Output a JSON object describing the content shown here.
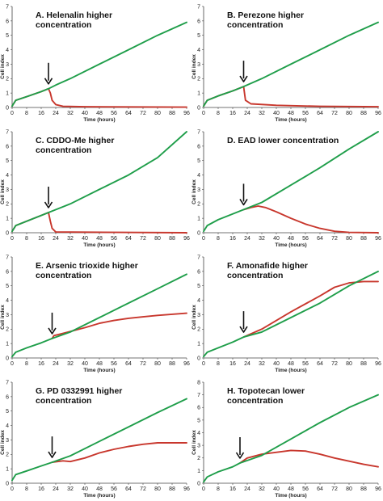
{
  "colors": {
    "control": "#1f9e4a",
    "treated": "#c8372d",
    "axis": "#444444",
    "arrow": "#111111"
  },
  "chart_data": [
    {
      "type": "line",
      "title": "A. Helenalin higher concentration",
      "xlabel": "Time (hours)",
      "ylabel": "Cell index",
      "xlim": [
        0,
        96
      ],
      "ylim": [
        0,
        7
      ],
      "x_ticks": [
        0,
        8,
        16,
        24,
        32,
        40,
        48,
        56,
        64,
        72,
        80,
        88,
        96
      ],
      "y_ticks": [
        0,
        1,
        2,
        3,
        4,
        5,
        6,
        7
      ],
      "arrow_x": 20,
      "series": [
        {
          "color": "green",
          "points": [
            [
              0,
              0.1
            ],
            [
              2,
              0.5
            ],
            [
              8,
              0.75
            ],
            [
              16,
              1.1
            ],
            [
              20,
              1.3
            ],
            [
              24,
              1.55
            ],
            [
              32,
              2.0
            ],
            [
              48,
              3.0
            ],
            [
              64,
              4.0
            ],
            [
              80,
              5.0
            ],
            [
              96,
              5.9
            ]
          ]
        },
        {
          "color": "red",
          "points": [
            [
              0,
              0.1
            ],
            [
              2,
              0.5
            ],
            [
              8,
              0.75
            ],
            [
              16,
              1.1
            ],
            [
              20,
              1.3
            ],
            [
              21,
              1.0
            ],
            [
              22,
              0.5
            ],
            [
              24,
              0.2
            ],
            [
              28,
              0.08
            ],
            [
              40,
              0.05
            ],
            [
              96,
              0.02
            ]
          ]
        }
      ]
    },
    {
      "type": "line",
      "title": "B. Perezone higher concentration",
      "xlabel": "Time (hours)",
      "ylabel": "Cell index",
      "xlim": [
        0,
        96
      ],
      "ylim": [
        0,
        7
      ],
      "x_ticks": [
        0,
        8,
        16,
        24,
        32,
        40,
        48,
        56,
        64,
        72,
        80,
        88,
        96
      ],
      "y_ticks": [
        0,
        1,
        2,
        3,
        4,
        5,
        6,
        7
      ],
      "arrow_x": 22,
      "series": [
        {
          "color": "green",
          "points": [
            [
              0,
              0.1
            ],
            [
              2,
              0.5
            ],
            [
              8,
              0.8
            ],
            [
              16,
              1.15
            ],
            [
              22,
              1.45
            ],
            [
              32,
              2.0
            ],
            [
              48,
              3.0
            ],
            [
              64,
              4.0
            ],
            [
              80,
              5.0
            ],
            [
              96,
              5.9
            ]
          ]
        },
        {
          "color": "red",
          "points": [
            [
              0,
              0.1
            ],
            [
              2,
              0.5
            ],
            [
              8,
              0.8
            ],
            [
              16,
              1.15
            ],
            [
              22,
              1.45
            ],
            [
              23,
              0.5
            ],
            [
              26,
              0.25
            ],
            [
              40,
              0.15
            ],
            [
              64,
              0.08
            ],
            [
              96,
              0.05
            ]
          ]
        }
      ]
    },
    {
      "type": "line",
      "title": "C. CDDO-Me higher concentration",
      "xlabel": "Time (hours)",
      "ylabel": "Cell index",
      "xlim": [
        0,
        96
      ],
      "ylim": [
        0,
        7
      ],
      "x_ticks": [
        0,
        8,
        16,
        24,
        32,
        40,
        48,
        56,
        64,
        72,
        80,
        88,
        96
      ],
      "y_ticks": [
        0,
        1,
        2,
        3,
        4,
        5,
        6,
        7
      ],
      "arrow_x": 20,
      "series": [
        {
          "color": "green",
          "points": [
            [
              0,
              0.1
            ],
            [
              2,
              0.5
            ],
            [
              8,
              0.8
            ],
            [
              16,
              1.2
            ],
            [
              20,
              1.4
            ],
            [
              32,
              2.0
            ],
            [
              48,
              3.0
            ],
            [
              64,
              4.0
            ],
            [
              80,
              5.2
            ],
            [
              96,
              7.0
            ]
          ]
        },
        {
          "color": "red",
          "points": [
            [
              0,
              0.1
            ],
            [
              2,
              0.5
            ],
            [
              8,
              0.8
            ],
            [
              16,
              1.2
            ],
            [
              20,
              1.4
            ],
            [
              21,
              0.8
            ],
            [
              22,
              0.3
            ],
            [
              24,
              0.05
            ],
            [
              96,
              0.0
            ]
          ]
        }
      ]
    },
    {
      "type": "line",
      "title": "D. EAD lower concentration",
      "xlabel": "Time (hours)",
      "ylabel": "Cell index",
      "xlim": [
        0,
        96
      ],
      "ylim": [
        0,
        7
      ],
      "x_ticks": [
        0,
        8,
        16,
        24,
        32,
        40,
        48,
        56,
        64,
        72,
        80,
        88,
        96
      ],
      "y_ticks": [
        0,
        1,
        2,
        3,
        4,
        5,
        6,
        7
      ],
      "arrow_x": 22,
      "series": [
        {
          "color": "green",
          "points": [
            [
              0,
              0.1
            ],
            [
              2,
              0.5
            ],
            [
              8,
              0.9
            ],
            [
              16,
              1.3
            ],
            [
              22,
              1.6
            ],
            [
              32,
              2.1
            ],
            [
              48,
              3.3
            ],
            [
              64,
              4.5
            ],
            [
              80,
              5.8
            ],
            [
              96,
              7.0
            ]
          ]
        },
        {
          "color": "red",
          "points": [
            [
              22,
              1.6
            ],
            [
              26,
              1.75
            ],
            [
              30,
              1.85
            ],
            [
              34,
              1.75
            ],
            [
              40,
              1.45
            ],
            [
              48,
              1.0
            ],
            [
              56,
              0.6
            ],
            [
              64,
              0.3
            ],
            [
              72,
              0.1
            ],
            [
              80,
              0.02
            ],
            [
              96,
              0.0
            ]
          ]
        }
      ]
    },
    {
      "type": "line",
      "title": "E. Arsenic trioxide higher concentration",
      "xlabel": "Time (hours)",
      "ylabel": "Cell index",
      "xlim": [
        0,
        96
      ],
      "ylim": [
        0,
        7
      ],
      "x_ticks": [
        0,
        8,
        16,
        24,
        32,
        40,
        48,
        56,
        64,
        72,
        80,
        88,
        96
      ],
      "y_ticks": [
        0,
        1,
        2,
        3,
        4,
        5,
        6,
        7
      ],
      "arrow_x": 22,
      "series": [
        {
          "color": "green",
          "points": [
            [
              0,
              0.1
            ],
            [
              2,
              0.4
            ],
            [
              8,
              0.7
            ],
            [
              16,
              1.05
            ],
            [
              22,
              1.35
            ],
            [
              32,
              1.8
            ],
            [
              48,
              2.8
            ],
            [
              64,
              3.8
            ],
            [
              80,
              4.8
            ],
            [
              96,
              5.8
            ]
          ]
        },
        {
          "color": "red",
          "points": [
            [
              22,
              1.35
            ],
            [
              23,
              1.55
            ],
            [
              28,
              1.7
            ],
            [
              40,
              2.1
            ],
            [
              48,
              2.4
            ],
            [
              56,
              2.6
            ],
            [
              64,
              2.75
            ],
            [
              72,
              2.85
            ],
            [
              80,
              2.95
            ],
            [
              96,
              3.1
            ]
          ]
        }
      ]
    },
    {
      "type": "line",
      "title": "F. Amonafide higher concentration",
      "xlabel": "Time (hours)",
      "ylabel": "Cell index",
      "xlim": [
        0,
        96
      ],
      "ylim": [
        0,
        7
      ],
      "x_ticks": [
        0,
        8,
        16,
        24,
        32,
        40,
        48,
        56,
        64,
        72,
        80,
        88,
        96
      ],
      "y_ticks": [
        0,
        1,
        2,
        3,
        4,
        5,
        6,
        7
      ],
      "arrow_x": 22,
      "series": [
        {
          "color": "green",
          "points": [
            [
              0,
              0.1
            ],
            [
              2,
              0.4
            ],
            [
              8,
              0.7
            ],
            [
              16,
              1.1
            ],
            [
              22,
              1.45
            ],
            [
              32,
              1.8
            ],
            [
              48,
              2.8
            ],
            [
              64,
              3.8
            ],
            [
              80,
              5.0
            ],
            [
              96,
              6.0
            ]
          ]
        },
        {
          "color": "red",
          "points": [
            [
              22,
              1.45
            ],
            [
              32,
              2.0
            ],
            [
              48,
              3.2
            ],
            [
              64,
              4.3
            ],
            [
              72,
              4.9
            ],
            [
              80,
              5.2
            ],
            [
              88,
              5.3
            ],
            [
              96,
              5.3
            ]
          ]
        }
      ]
    },
    {
      "type": "line",
      "title": "G. PD 0332991 higher concentration",
      "xlabel": "Time (hours)",
      "ylabel": "Cell index",
      "xlim": [
        0,
        96
      ],
      "ylim": [
        0,
        7
      ],
      "x_ticks": [
        0,
        8,
        16,
        24,
        32,
        40,
        48,
        56,
        64,
        72,
        80,
        88,
        96
      ],
      "y_ticks": [
        0,
        1,
        2,
        3,
        4,
        5,
        6,
        7
      ],
      "arrow_x": 22,
      "series": [
        {
          "color": "green",
          "points": [
            [
              0,
              0.2
            ],
            [
              2,
              0.6
            ],
            [
              8,
              0.85
            ],
            [
              16,
              1.2
            ],
            [
              22,
              1.45
            ],
            [
              32,
              1.9
            ],
            [
              48,
              2.9
            ],
            [
              64,
              3.9
            ],
            [
              80,
              4.9
            ],
            [
              96,
              5.85
            ]
          ]
        },
        {
          "color": "red",
          "points": [
            [
              22,
              1.45
            ],
            [
              28,
              1.55
            ],
            [
              32,
              1.5
            ],
            [
              40,
              1.75
            ],
            [
              48,
              2.1
            ],
            [
              56,
              2.35
            ],
            [
              64,
              2.55
            ],
            [
              72,
              2.7
            ],
            [
              80,
              2.8
            ],
            [
              96,
              2.8
            ]
          ]
        }
      ]
    },
    {
      "type": "line",
      "title": "H. Topotecan lower concentration",
      "xlabel": "Time (hours)",
      "ylabel": "Cell index",
      "xlim": [
        0,
        96
      ],
      "ylim": [
        0,
        8
      ],
      "x_ticks": [
        0,
        8,
        16,
        24,
        32,
        40,
        48,
        56,
        64,
        72,
        80,
        88,
        96
      ],
      "y_ticks": [
        0,
        1,
        2,
        3,
        4,
        5,
        6,
        7,
        8
      ],
      "arrow_x": 20,
      "series": [
        {
          "color": "green",
          "points": [
            [
              0,
              0.1
            ],
            [
              2,
              0.5
            ],
            [
              8,
              0.9
            ],
            [
              16,
              1.3
            ],
            [
              20,
              1.6
            ],
            [
              32,
              2.2
            ],
            [
              48,
              3.5
            ],
            [
              64,
              4.8
            ],
            [
              80,
              6.0
            ],
            [
              96,
              7.0
            ]
          ]
        },
        {
          "color": "red",
          "points": [
            [
              20,
              1.6
            ],
            [
              24,
              2.0
            ],
            [
              32,
              2.3
            ],
            [
              48,
              2.6
            ],
            [
              56,
              2.55
            ],
            [
              64,
              2.3
            ],
            [
              72,
              2.0
            ],
            [
              80,
              1.75
            ],
            [
              88,
              1.5
            ],
            [
              96,
              1.3
            ]
          ]
        }
      ]
    }
  ]
}
